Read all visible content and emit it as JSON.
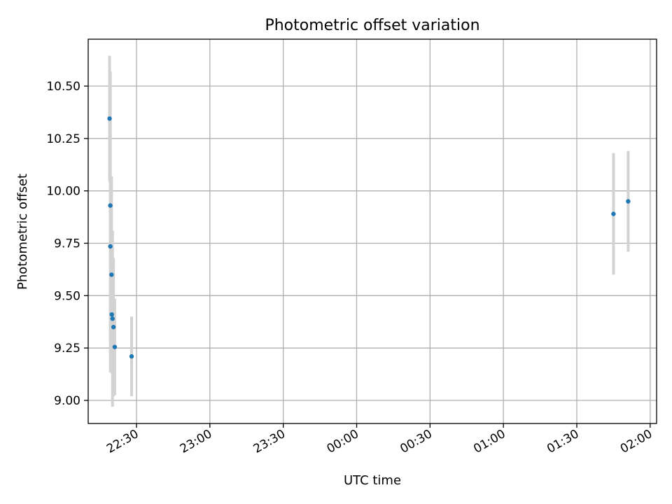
{
  "chart_data": {
    "type": "scatter",
    "title": "Photometric offset variation",
    "xlabel": "UTC time",
    "ylabel": "Photometric offset",
    "x_unit": "minutes",
    "x_ticks": [
      "22:30",
      "23:00",
      "23:30",
      "00:00",
      "00:30",
      "01:00",
      "01:30",
      "02:00"
    ],
    "y_ticks": [
      "9.00",
      "9.25",
      "9.50",
      "9.75",
      "10.00",
      "10.25",
      "10.50"
    ],
    "ylim": [
      8.89,
      10.72
    ],
    "grid": true,
    "error_bar_color": "#d3d3d3",
    "point_color": "#1f77b4",
    "points": [
      {
        "x": "22:19.0",
        "y": 10.345,
        "yerr": 0.3
      },
      {
        "x": "22:19.3",
        "y": 9.93,
        "yerr": 0.64
      },
      {
        "x": "22:19.3",
        "y": 9.735,
        "yerr": 0.6
      },
      {
        "x": "22:19.8",
        "y": 9.6,
        "yerr": 0.47
      },
      {
        "x": "22:19.9",
        "y": 9.41,
        "yerr": 0.28
      },
      {
        "x": "22:20.2",
        "y": 9.39,
        "yerr": 0.42
      },
      {
        "x": "22:20.6",
        "y": 9.35,
        "yerr": 0.33
      },
      {
        "x": "22:21.1",
        "y": 9.255,
        "yerr": 0.23
      },
      {
        "x": "22:28.0",
        "y": 9.21,
        "yerr": 0.19
      },
      {
        "x": "01:45.0",
        "y": 9.89,
        "yerr": 0.29
      },
      {
        "x": "01:51.0",
        "y": 9.95,
        "yerr": 0.24
      }
    ]
  }
}
